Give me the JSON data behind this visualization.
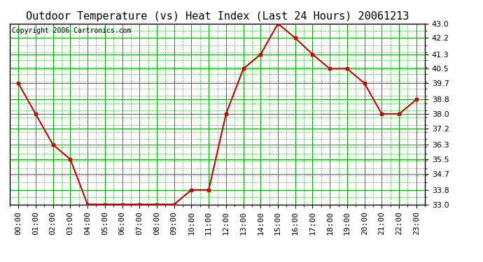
{
  "title": "Outdoor Temperature (vs) Heat Index (Last 24 Hours) 20061213",
  "copyright_text": "Copyright 2006 Cartronics.com",
  "x_labels": [
    "00:00",
    "01:00",
    "02:00",
    "03:00",
    "04:00",
    "05:00",
    "06:00",
    "07:00",
    "08:00",
    "09:00",
    "10:00",
    "11:00",
    "12:00",
    "13:00",
    "14:00",
    "15:00",
    "16:00",
    "17:00",
    "18:00",
    "19:00",
    "20:00",
    "21:00",
    "22:00",
    "23:00"
  ],
  "y_values": [
    39.7,
    38.0,
    36.3,
    35.5,
    33.0,
    33.0,
    33.0,
    33.0,
    33.0,
    33.0,
    33.8,
    33.8,
    38.0,
    40.5,
    41.3,
    43.0,
    42.2,
    41.3,
    40.5,
    40.5,
    39.7,
    38.0,
    38.0,
    38.8
  ],
  "yticks": [
    33.0,
    33.8,
    34.7,
    35.5,
    36.3,
    37.2,
    38.0,
    38.8,
    39.7,
    40.5,
    41.3,
    42.2,
    43.0
  ],
  "ymin": 33.0,
  "ymax": 43.0,
  "line_color": "#cc0000",
  "marker_color": "#cc0000",
  "background_color": "#ffffff",
  "plot_bg_color": "#ffffff",
  "grid_major_color": "#00aa00",
  "grid_minor_color": "#00cc00",
  "border_color": "#000000",
  "title_fontsize": 11,
  "copyright_fontsize": 7,
  "tick_fontsize": 8
}
